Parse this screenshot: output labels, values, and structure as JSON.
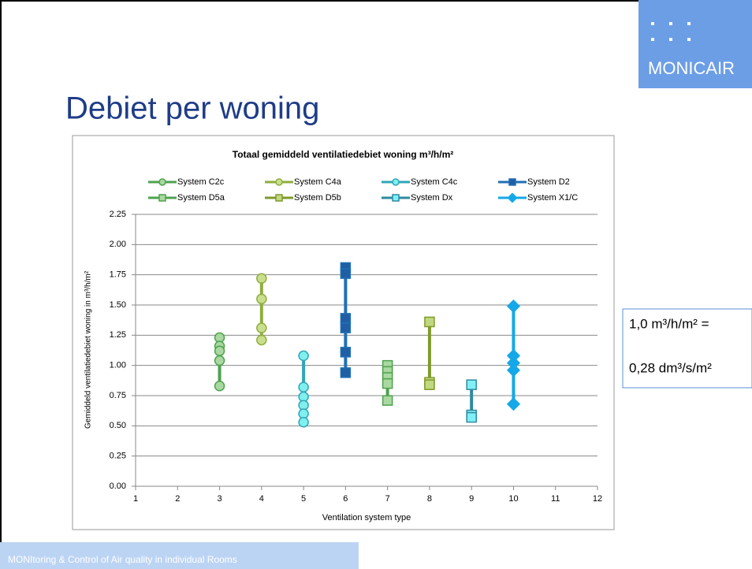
{
  "logo": {
    "text": "MONICAIR"
  },
  "slide_title": "Debiet per woning",
  "note": {
    "line1": "1,0 m³/h/m² =",
    "line2": "0,28 dm³/s/m²"
  },
  "footer": "MONItoring & Control of Air quality in individual Rooms",
  "chart_data": {
    "type": "scatter",
    "title": "Totaal gemiddeld ventilatiedebiet woning  m³/h/m²",
    "x_label": "Ventilation system type",
    "y_label": "Gemiddeld ventilatiedebiet woning in m³/h/m²",
    "xlim": [
      1,
      12
    ],
    "xticks": [
      1,
      2,
      3,
      4,
      5,
      6,
      7,
      8,
      9,
      10,
      11,
      12
    ],
    "ylim": [
      0,
      2.25
    ],
    "yticks": [
      {
        "value": 0,
        "label": "0.00"
      },
      {
        "value": 0.25,
        "label": "0.25"
      },
      {
        "value": 0.5,
        "label": "0.50"
      },
      {
        "value": 0.75,
        "label": "0.75"
      },
      {
        "value": 1,
        "label": "1.00"
      },
      {
        "value": 1.25,
        "label": "1.25"
      },
      {
        "value": 1.5,
        "label": "1.50"
      },
      {
        "value": 1.75,
        "label": "1.75"
      },
      {
        "value": 2,
        "label": "2.00"
      },
      {
        "value": 2.25,
        "label": "2.25"
      }
    ],
    "grid": true,
    "series": [
      {
        "name": "System C2c",
        "color": "#4ea24e",
        "fill": "#a9d8a0",
        "marker": "circle",
        "x": [
          3,
          3,
          3,
          3,
          3
        ],
        "values": [
          1.23,
          1.16,
          1.12,
          1.04,
          0.83
        ]
      },
      {
        "name": "System C4a",
        "color": "#8fae3c",
        "fill": "#c9df8e",
        "marker": "circle",
        "x": [
          4,
          4,
          4,
          4
        ],
        "values": [
          1.72,
          1.55,
          1.31,
          1.21
        ]
      },
      {
        "name": "System C4c",
        "color": "#31a6b8",
        "fill": "#7fefef",
        "marker": "circle",
        "x": [
          5,
          5,
          5,
          5,
          5,
          5
        ],
        "values": [
          1.08,
          0.82,
          0.74,
          0.67,
          0.6,
          0.53
        ]
      },
      {
        "name": "System D2",
        "color": "#1f6fb5",
        "fill": "#1f5fa5",
        "marker": "square",
        "x": [
          6,
          6,
          6,
          6,
          6,
          6
        ],
        "values": [
          1.81,
          1.76,
          1.39,
          1.31,
          1.11,
          0.94
        ]
      },
      {
        "name": "System D5a",
        "color": "#4ea24e",
        "fill": "#a9d8a0",
        "marker": "square",
        "x": [
          7,
          7,
          7,
          7,
          7
        ],
        "values": [
          1,
          0.95,
          0.9,
          0.85,
          0.71
        ]
      },
      {
        "name": "System D5b",
        "color": "#7f9a2a",
        "fill": "#c0d980",
        "marker": "square",
        "x": [
          8,
          8,
          8
        ],
        "values": [
          1.36,
          0.86,
          0.84
        ]
      },
      {
        "name": "System Dx",
        "color": "#2f8aa0",
        "fill": "#80f0f8",
        "marker": "square",
        "x": [
          9,
          9,
          9
        ],
        "values": [
          0.84,
          0.59,
          0.57
        ]
      },
      {
        "name": "System X1/C",
        "color": "#14a8e8",
        "fill": "#14a8e8",
        "marker": "diamond",
        "x": [
          10,
          10,
          10,
          10,
          10
        ],
        "values": [
          1.49,
          1.08,
          1.02,
          0.96,
          0.68
        ]
      }
    ]
  }
}
